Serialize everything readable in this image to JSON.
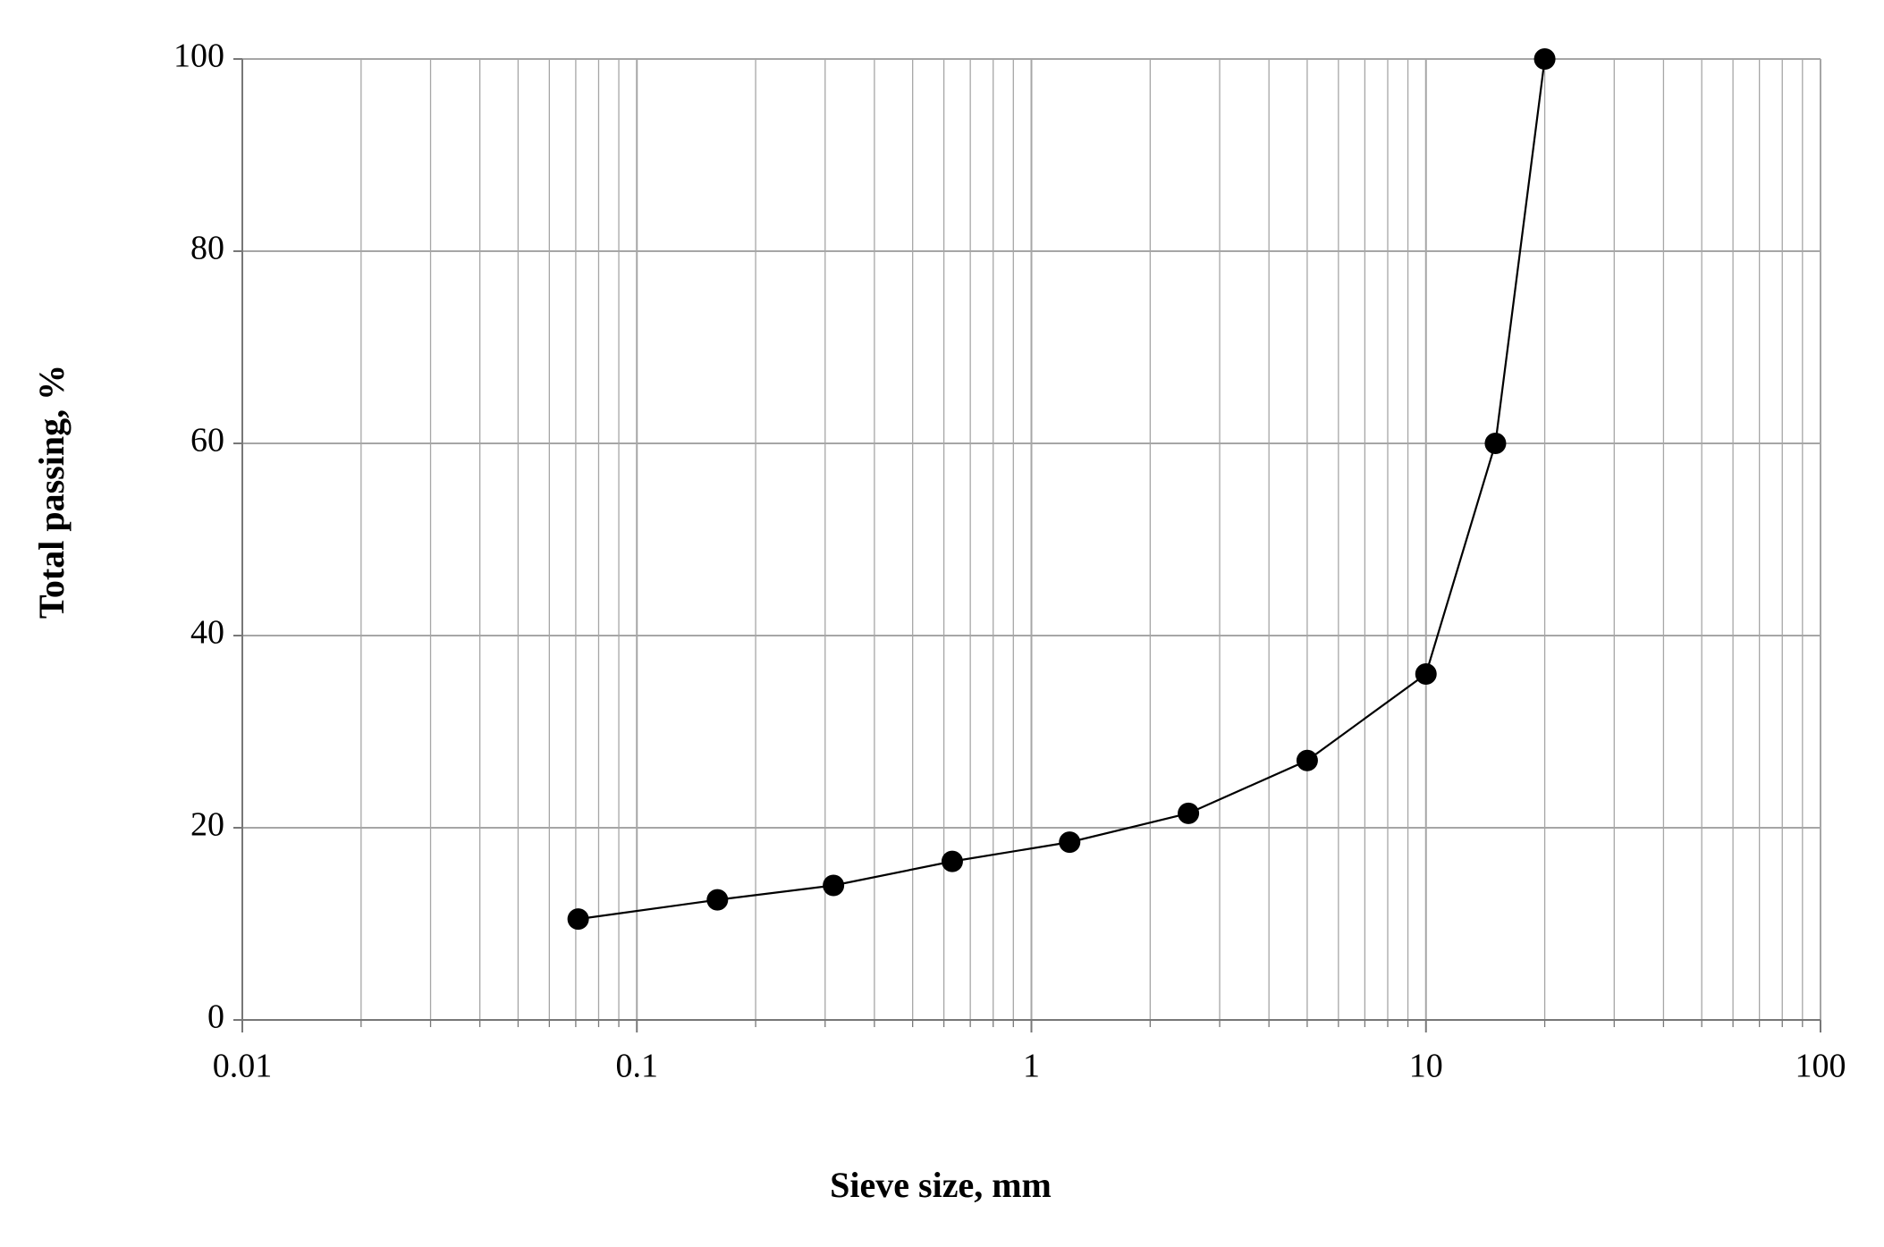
{
  "chart_data": {
    "type": "line",
    "x_label": "Sieve size, mm",
    "y_label": "Total passing, %",
    "x": [
      0.071,
      0.16,
      0.315,
      0.63,
      1.25,
      2.5,
      5,
      10,
      15,
      20
    ],
    "values": [
      10.5,
      12.5,
      14,
      16.5,
      18.5,
      21.5,
      27,
      36,
      60,
      100
    ],
    "color": "#000000",
    "xscale": "log",
    "xlim": [
      0.01,
      100
    ],
    "xticks": [
      0.01,
      0.1,
      1,
      10,
      100
    ],
    "ylim": [
      0,
      100
    ],
    "yticks": [
      0,
      20,
      40,
      60,
      80,
      100
    ],
    "grid": true,
    "minor_grid": true
  }
}
